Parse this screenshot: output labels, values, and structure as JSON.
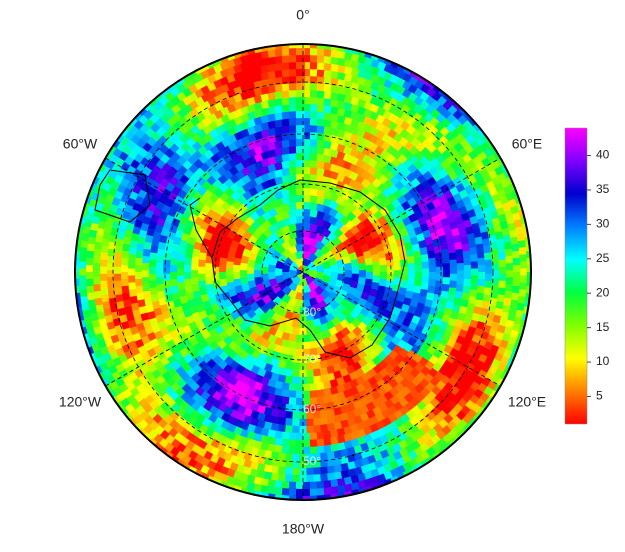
{
  "map": {
    "longitude_labels": [
      "0°",
      "60°W",
      "60°E",
      "120°W",
      "120°E",
      "180°W"
    ],
    "latitude_labels": [
      "80°",
      "70°",
      "60°",
      "50°"
    ],
    "colorbar": {
      "lim": [
        1,
        44
      ],
      "ticks": [
        5,
        10,
        15,
        20,
        25,
        30,
        35,
        40
      ],
      "colors": [
        "#ff0000",
        "#ff8000",
        "#ffff00",
        "#80ff00",
        "#00ff40",
        "#00ffff",
        "#0080ff",
        "#0000cc",
        "#8000ff",
        "#ff00ff"
      ]
    }
  }
}
